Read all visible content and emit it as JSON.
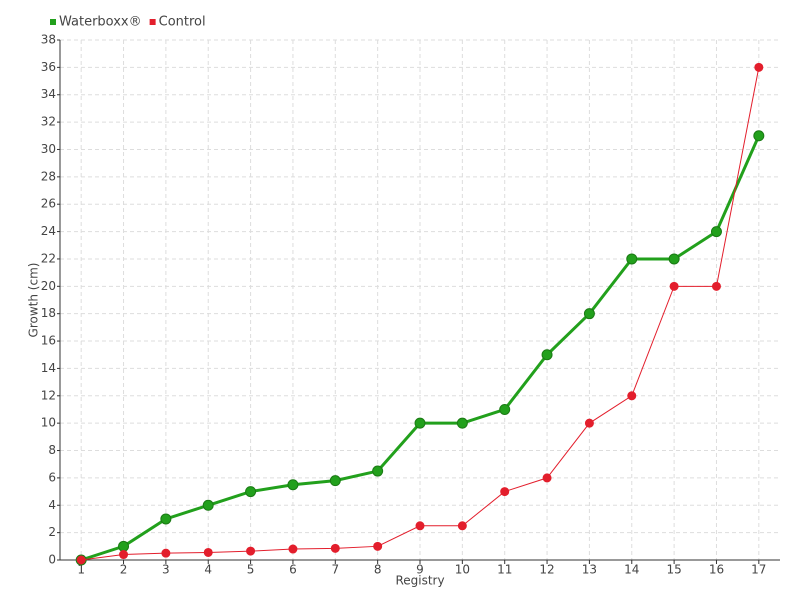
{
  "chart_data": {
    "type": "line",
    "x_label": "Registry",
    "y_label": "Growth (cm)",
    "categories": [
      "1",
      "2",
      "3",
      "4",
      "5",
      "6",
      "7",
      "8",
      "9",
      "10",
      "11",
      "12",
      "13",
      "14",
      "15",
      "16",
      "17"
    ],
    "series": [
      {
        "name": "Waterboxx®",
        "color": "#22a01c",
        "values": [
          0,
          1,
          3,
          4,
          5,
          5.5,
          5.8,
          6.5,
          10,
          10,
          11,
          15,
          18,
          22,
          22,
          24,
          31
        ]
      },
      {
        "name": "Control",
        "color": "#e31e2c",
        "values": [
          0,
          0.4,
          0.5,
          0.55,
          0.65,
          0.8,
          0.85,
          1,
          2.5,
          2.5,
          5,
          6,
          10,
          12,
          20,
          20,
          36
        ]
      }
    ],
    "ylim": [
      0,
      38
    ],
    "yticks": [
      0,
      2,
      4,
      6,
      8,
      10,
      12,
      14,
      16,
      18,
      20,
      22,
      24,
      26,
      28,
      30,
      32,
      34,
      36,
      38
    ],
    "grid": true,
    "legend": "top-left"
  }
}
